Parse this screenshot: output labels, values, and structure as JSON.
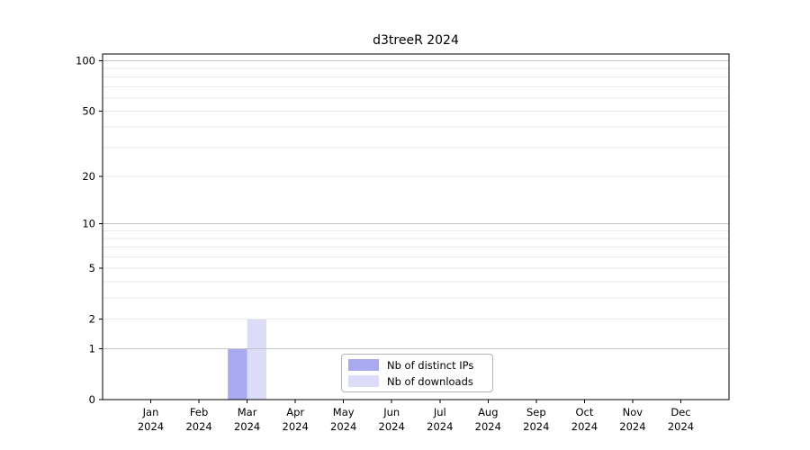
{
  "chart_data": {
    "type": "bar",
    "title": "d3treeR 2024",
    "categories": [
      "Jan",
      "Feb",
      "Mar",
      "Apr",
      "May",
      "Jun",
      "Jul",
      "Aug",
      "Sep",
      "Oct",
      "Nov",
      "Dec"
    ],
    "x_tick_year": "2024",
    "series": [
      {
        "name": "Nb of distinct IPs",
        "color": "#a9a9f0",
        "values": [
          0,
          0,
          1,
          0,
          0,
          0,
          0,
          0,
          0,
          0,
          0,
          0
        ]
      },
      {
        "name": "Nb of downloads",
        "color": "#dcdcf8",
        "values": [
          0,
          0,
          2,
          0,
          0,
          0,
          0,
          0,
          0,
          0,
          0,
          0
        ]
      }
    ],
    "yscale": "log1p",
    "ylim": [
      0,
      110
    ],
    "y_ticks": [
      0,
      1,
      2,
      5,
      10,
      20,
      50,
      100
    ],
    "grid_major_values": [
      1,
      10,
      100
    ],
    "grid_minor_values": [
      2,
      3,
      4,
      5,
      6,
      7,
      8,
      9,
      20,
      30,
      40,
      50,
      60,
      70,
      80,
      90
    ],
    "legend_position": "lower center",
    "colors": {
      "grid_major": "#c3c3c3",
      "grid_minor": "#eaeaea",
      "axis": "#000000",
      "tick_text": "#000000",
      "legend_border": "#b4b4b4",
      "background": "#ffffff"
    }
  }
}
